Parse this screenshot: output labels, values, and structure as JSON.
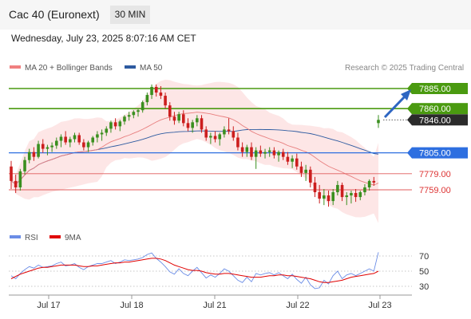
{
  "header": {
    "title": "Cac 40 (Euronext)",
    "timeframe": "30 MIN"
  },
  "datetime": "Wednesday, July 23, 2025 8:07:16 AM CET",
  "legend": {
    "bollinger_label": "MA 20 + Bollinger Bands",
    "bollinger_color": "#f08080",
    "ma50_label": "MA 50",
    "ma50_color": "#2d5aa0",
    "rsi_label": "RSI",
    "rsi_color": "#6b8de6",
    "rsi_ma_label": "9MA",
    "rsi_ma_color": "#e00000"
  },
  "credit": "Research © 2025 Trading Central",
  "colors": {
    "up": "#3a8f1f",
    "down": "#cc1e1e",
    "green_level": "#4a9a10",
    "blue_level": "#2e6fe0",
    "red_level": "#e05b5b",
    "arrow": "#2e66c2"
  },
  "chart_data": {
    "type": "candlestick",
    "x_ticks": [
      "Jul 17",
      "Jul 18",
      "Jul 21",
      "Jul 22",
      "Jul 23"
    ],
    "y_range": [
      7705,
      7895
    ],
    "levels": [
      {
        "label": "7885.00",
        "value": 7885,
        "style": "green"
      },
      {
        "label": "7860.00",
        "value": 7860,
        "style": "green"
      },
      {
        "label": "7846.00",
        "value": 7846,
        "style": "last"
      },
      {
        "label": "7805.00",
        "value": 7805,
        "style": "blue"
      },
      {
        "label": "7779.00",
        "value": 7779,
        "style": "red"
      },
      {
        "label": "7759.00",
        "value": 7759,
        "style": "red"
      }
    ],
    "candles": [
      [
        7788,
        7795,
        7760,
        7770
      ],
      [
        7770,
        7778,
        7755,
        7762
      ],
      [
        7762,
        7785,
        7758,
        7782
      ],
      [
        7782,
        7800,
        7778,
        7796
      ],
      [
        7796,
        7810,
        7792,
        7806
      ],
      [
        7806,
        7812,
        7795,
        7800
      ],
      [
        7800,
        7820,
        7798,
        7816
      ],
      [
        7816,
        7822,
        7805,
        7810
      ],
      [
        7810,
        7815,
        7802,
        7812
      ],
      [
        7812,
        7818,
        7806,
        7814
      ],
      [
        7814,
        7824,
        7810,
        7820
      ],
      [
        7820,
        7828,
        7812,
        7825
      ],
      [
        7825,
        7832,
        7815,
        7818
      ],
      [
        7818,
        7825,
        7812,
        7822
      ],
      [
        7822,
        7830,
        7818,
        7827
      ],
      [
        7827,
        7830,
        7815,
        7818
      ],
      [
        7818,
        7822,
        7808,
        7812
      ],
      [
        7812,
        7820,
        7806,
        7818
      ],
      [
        7818,
        7826,
        7814,
        7824
      ],
      [
        7824,
        7832,
        7818,
        7828
      ],
      [
        7828,
        7834,
        7820,
        7830
      ],
      [
        7830,
        7838,
        7826,
        7835
      ],
      [
        7835,
        7845,
        7830,
        7843
      ],
      [
        7843,
        7848,
        7834,
        7838
      ],
      [
        7838,
        7846,
        7832,
        7844
      ],
      [
        7844,
        7852,
        7840,
        7850
      ],
      [
        7850,
        7856,
        7845,
        7852
      ],
      [
        7852,
        7858,
        7848,
        7856
      ],
      [
        7856,
        7860,
        7850,
        7858
      ],
      [
        7858,
        7870,
        7855,
        7868
      ],
      [
        7868,
        7880,
        7864,
        7877
      ],
      [
        7877,
        7890,
        7872,
        7887
      ],
      [
        7887,
        7890,
        7875,
        7880
      ],
      [
        7880,
        7888,
        7872,
        7876
      ],
      [
        7876,
        7880,
        7860,
        7864
      ],
      [
        7864,
        7868,
        7845,
        7850
      ],
      [
        7850,
        7856,
        7840,
        7845
      ],
      [
        7845,
        7856,
        7842,
        7853
      ],
      [
        7853,
        7858,
        7838,
        7842
      ],
      [
        7842,
        7848,
        7832,
        7836
      ],
      [
        7836,
        7846,
        7830,
        7843
      ],
      [
        7843,
        7852,
        7838,
        7848
      ],
      [
        7848,
        7852,
        7830,
        7834
      ],
      [
        7834,
        7838,
        7820,
        7824
      ],
      [
        7824,
        7830,
        7816,
        7826
      ],
      [
        7826,
        7832,
        7818,
        7822
      ],
      [
        7822,
        7830,
        7814,
        7828
      ],
      [
        7828,
        7838,
        7824,
        7834
      ],
      [
        7834,
        7848,
        7828,
        7832
      ],
      [
        7832,
        7838,
        7820,
        7824
      ],
      [
        7824,
        7830,
        7808,
        7812
      ],
      [
        7812,
        7818,
        7800,
        7806
      ],
      [
        7806,
        7815,
        7800,
        7812
      ],
      [
        7812,
        7818,
        7796,
        7800
      ],
      [
        7800,
        7812,
        7785,
        7808
      ],
      [
        7808,
        7814,
        7800,
        7804
      ],
      [
        7804,
        7810,
        7798,
        7806
      ],
      [
        7806,
        7812,
        7800,
        7808
      ],
      [
        7808,
        7812,
        7798,
        7802
      ],
      [
        7802,
        7808,
        7794,
        7806
      ],
      [
        7806,
        7810,
        7796,
        7800
      ],
      [
        7800,
        7806,
        7790,
        7794
      ],
      [
        7794,
        7802,
        7786,
        7798
      ],
      [
        7798,
        7804,
        7784,
        7788
      ],
      [
        7788,
        7794,
        7775,
        7780
      ],
      [
        7780,
        7790,
        7770,
        7784
      ],
      [
        7784,
        7788,
        7762,
        7768
      ],
      [
        7768,
        7775,
        7750,
        7756
      ],
      [
        7756,
        7765,
        7742,
        7748
      ],
      [
        7748,
        7760,
        7740,
        7752
      ],
      [
        7752,
        7758,
        7738,
        7745
      ],
      [
        7745,
        7760,
        7740,
        7756
      ],
      [
        7756,
        7770,
        7752,
        7765
      ],
      [
        7765,
        7768,
        7745,
        7750
      ],
      [
        7750,
        7756,
        7740,
        7752
      ],
      [
        7752,
        7758,
        7742,
        7755
      ],
      [
        7755,
        7760,
        7744,
        7750
      ],
      [
        7750,
        7758,
        7746,
        7756
      ],
      [
        7756,
        7766,
        7752,
        7762
      ],
      [
        7762,
        7772,
        7758,
        7770
      ],
      [
        7770,
        7775,
        7764,
        7768
      ],
      [
        7842,
        7852,
        7836,
        7846
      ]
    ],
    "rsi": [
      44,
      40,
      47,
      52,
      56,
      54,
      58,
      55,
      56,
      57,
      60,
      62,
      57,
      58,
      60,
      55,
      52,
      56,
      58,
      60,
      60,
      62,
      64,
      60,
      62,
      65,
      64,
      65,
      66,
      68,
      72,
      74,
      67,
      62,
      56,
      49,
      46,
      53,
      47,
      44,
      50,
      55,
      48,
      41,
      45,
      42,
      47,
      53,
      50,
      44,
      38,
      35,
      42,
      36,
      47,
      45,
      47,
      48,
      45,
      48,
      44,
      40,
      46,
      39,
      34,
      42,
      32,
      27,
      28,
      38,
      33,
      44,
      50,
      40,
      45,
      47,
      44,
      47,
      50,
      53,
      50,
      75
    ],
    "rsi_ma": [
      40,
      43,
      46,
      48,
      50,
      52,
      54,
      55,
      55,
      56,
      57,
      58,
      58,
      58,
      58,
      57,
      56,
      56,
      57,
      57,
      58,
      59,
      60,
      61,
      61,
      62,
      62,
      63,
      64,
      65,
      66,
      67,
      67,
      66,
      64,
      61,
      58,
      56,
      54,
      52,
      51,
      51,
      50,
      48,
      47,
      46,
      46,
      47,
      47,
      46,
      45,
      44,
      43,
      42,
      42,
      42,
      43,
      44,
      44,
      45,
      45,
      44,
      44,
      43,
      42,
      41,
      40,
      38,
      36,
      35,
      35,
      36,
      37,
      38,
      40,
      42,
      43,
      44,
      45,
      46,
      47,
      50
    ],
    "rsi_ticks": [
      "70",
      "50",
      "30"
    ]
  }
}
